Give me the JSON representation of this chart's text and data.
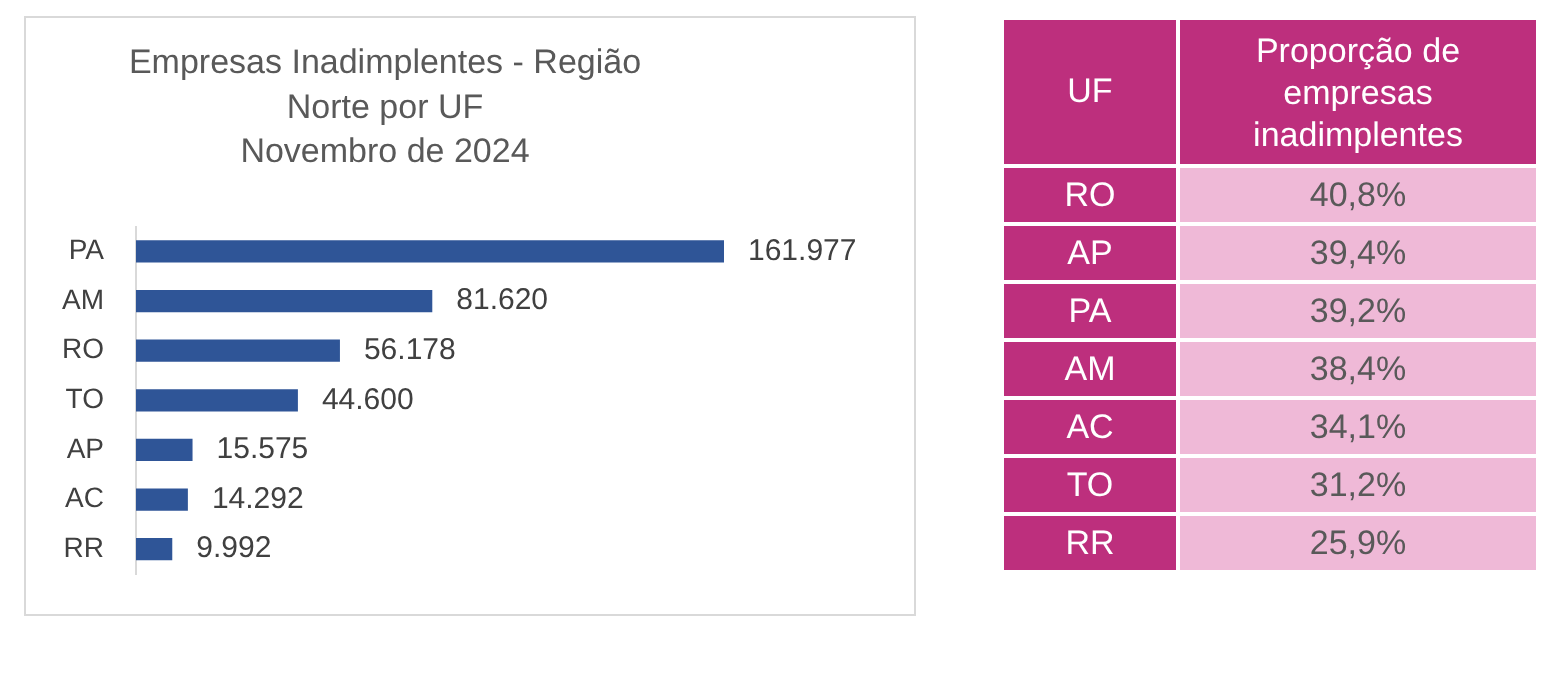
{
  "chart_data": [
    {
      "type": "bar",
      "orientation": "horizontal",
      "title": "Empresas Inadimplentes - Região\nNorte por UF\nNovembro de 2024",
      "categories": [
        "PA",
        "AM",
        "RO",
        "TO",
        "AP",
        "AC",
        "RR"
      ],
      "values": [
        161977,
        81620,
        56178,
        44600,
        15575,
        14292,
        9992
      ],
      "value_labels": [
        "161.977",
        "81.620",
        "56.178",
        "44.600",
        "15.575",
        "14.292",
        "9.992"
      ],
      "color": "#2f5597",
      "tick_labels": "y"
    },
    {
      "type": "other",
      "xlabel": "UF",
      "ylabel": "Proporção de empresas inadimplentes",
      "categories": [
        "RO",
        "AP",
        "PA",
        "AM",
        "AC",
        "TO",
        "RR"
      ],
      "value_labels": [
        "40,8%",
        "39,4%",
        "39,2%",
        "38,4%",
        "34,1%",
        "31,2%",
        "25,9%"
      ],
      "color": "#bd2f7d"
    }
  ]
}
